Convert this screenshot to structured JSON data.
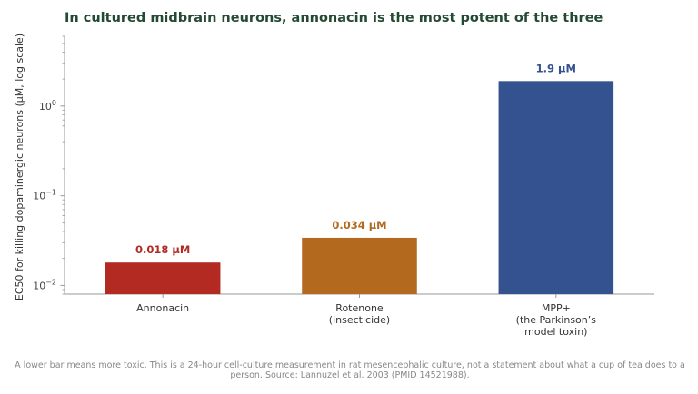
{
  "title": "In cultured midbrain neurons, annonacin is the most potent of the three",
  "footnote": "A lower bar means more toxic. This is a 24-hour cell-culture measurement in rat mesencephalic culture, not a statement about what a cup of tea does to a person. Source: Lannuzel et al. 2003 (PMID 14521988).",
  "chart_data": {
    "type": "bar",
    "ylabel": "EC50 for killing dopaminergic neurons (μM, log scale)",
    "yscale": "log",
    "ylim": [
      0.008,
      6
    ],
    "yticks": [
      {
        "value": 1,
        "base": "10",
        "exp": "0"
      },
      {
        "value": 0.1,
        "base": "10",
        "exp": "−1"
      },
      {
        "value": 0.01,
        "base": "10",
        "exp": "−2"
      }
    ],
    "categories": [
      [
        "Annonacin"
      ],
      [
        "Rotenone",
        "(insecticide)"
      ],
      [
        "MPP+",
        "(the Parkinson’s",
        "model toxin)"
      ]
    ],
    "values": [
      0.018,
      0.034,
      1.9
    ],
    "data_labels": [
      "0.018 μM",
      "0.034 μM",
      "1.9 μM"
    ],
    "colors": [
      "#b22a22",
      "#b3691e",
      "#33528f"
    ],
    "grid": false
  }
}
